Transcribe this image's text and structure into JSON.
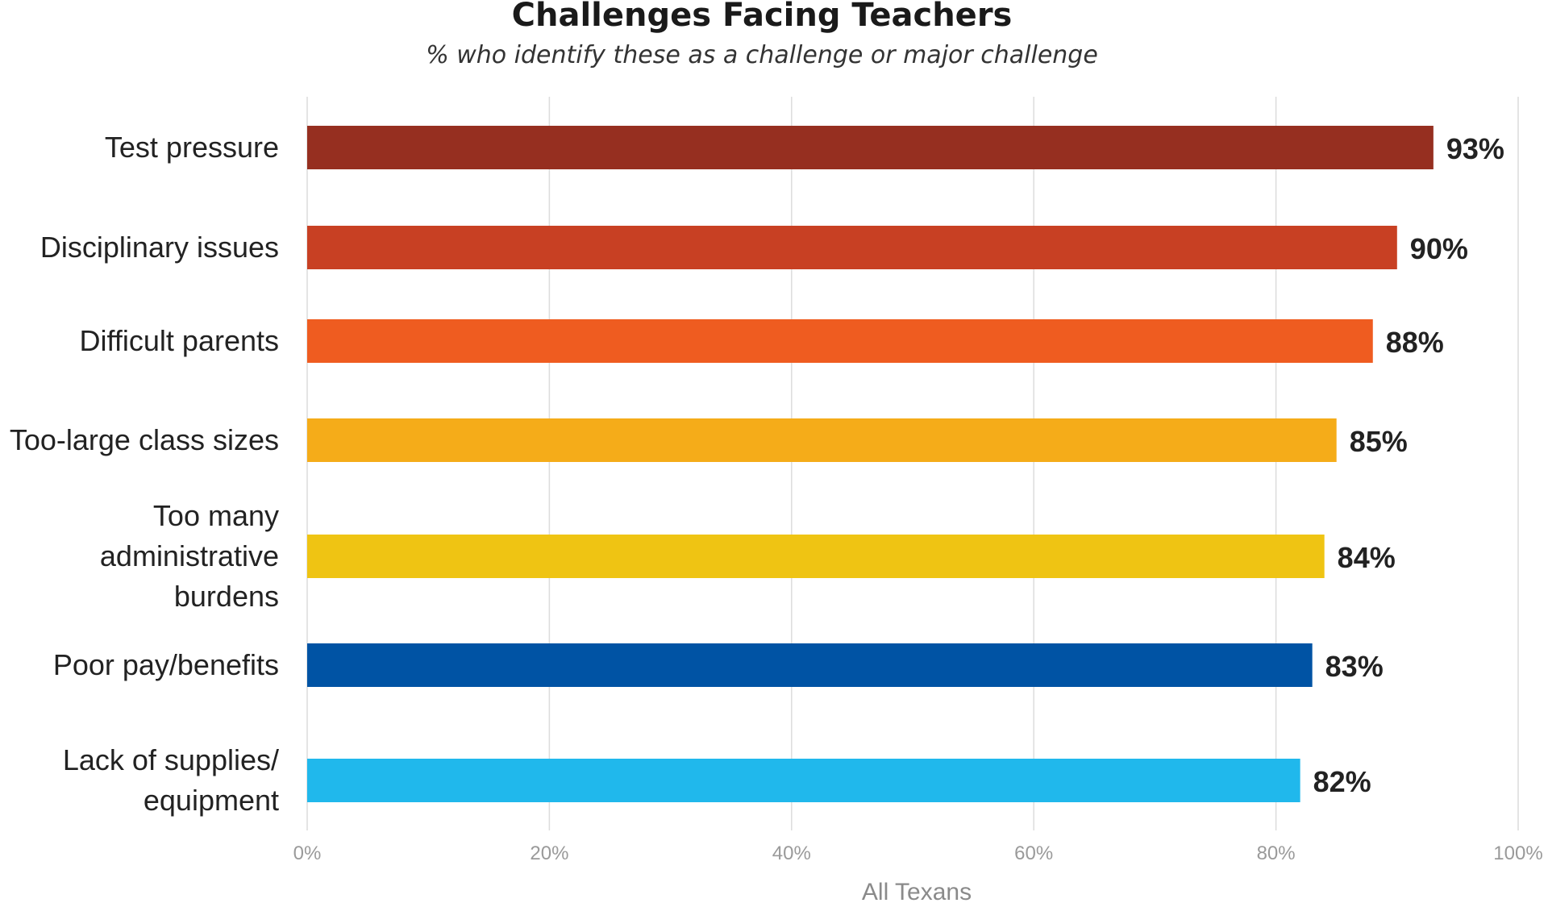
{
  "chart_data": {
    "type": "bar",
    "orientation": "horizontal",
    "title": "Challenges Facing Teachers",
    "subtitle": "% who identify these as a challenge or major challenge",
    "xlabel": "All Texans",
    "ylabel": "",
    "xlim": [
      0,
      100
    ],
    "ticks": [
      {
        "value": 0,
        "label": "0%"
      },
      {
        "value": 20,
        "label": "20%"
      },
      {
        "value": 40,
        "label": "40%"
      },
      {
        "value": 60,
        "label": "60%"
      },
      {
        "value": 80,
        "label": "80%"
      },
      {
        "value": 100,
        "label": "100%"
      }
    ],
    "grid": true,
    "bars": [
      {
        "category": [
          "Test pressure"
        ],
        "value": 93,
        "label": "93%",
        "color": "#962f20"
      },
      {
        "category": [
          "Disciplinary issues"
        ],
        "value": 90,
        "label": "90%",
        "color": "#c84023"
      },
      {
        "category": [
          "Difficult parents"
        ],
        "value": 88,
        "label": "88%",
        "color": "#ef5c20"
      },
      {
        "category": [
          "Too-large class sizes"
        ],
        "value": 85,
        "label": "85%",
        "color": "#f5ac19"
      },
      {
        "category": [
          "Too many",
          "administrative",
          "burdens"
        ],
        "value": 84,
        "label": "84%",
        "color": "#efc413"
      },
      {
        "category": [
          "Poor pay/benefits"
        ],
        "value": 83,
        "label": "83%",
        "color": "#0053a4"
      },
      {
        "category": [
          "Lack of supplies/",
          "equipment"
        ],
        "value": 82,
        "label": "82%",
        "color": "#20b8ec"
      }
    ]
  }
}
